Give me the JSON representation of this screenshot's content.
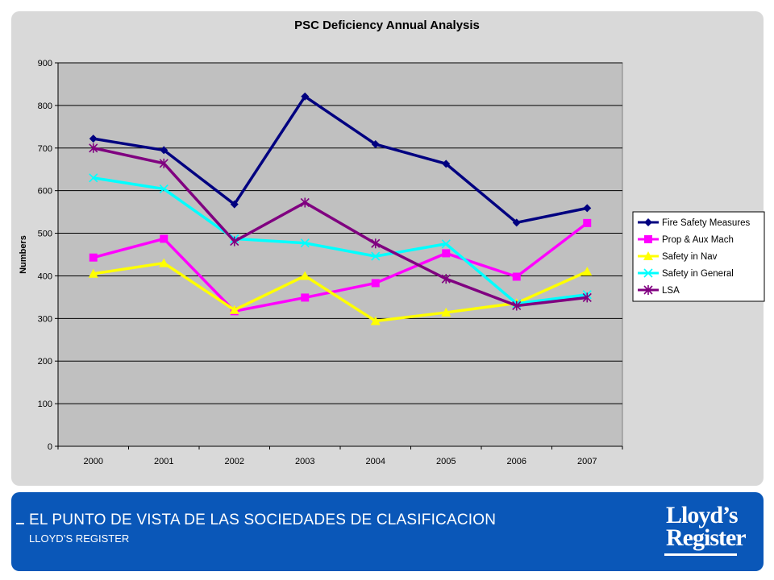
{
  "chart_data": {
    "type": "line",
    "title": "PSC Deficiency Annual Analysis",
    "xlabel": "",
    "ylabel": "Numbers",
    "categories": [
      "2000",
      "2001",
      "2002",
      "2003",
      "2004",
      "2005",
      "2006",
      "2007"
    ],
    "ylim": [
      0,
      900
    ],
    "yticks": [
      0,
      100,
      200,
      300,
      400,
      500,
      600,
      700,
      800,
      900
    ],
    "grid": true,
    "legend_position": "right",
    "plot_background": "#c0c0c0",
    "series": [
      {
        "name": "Fire Safety Measures",
        "color": "#000080",
        "marker": "diamond",
        "values": [
          722,
          695,
          568,
          821,
          709,
          663,
          525,
          559
        ]
      },
      {
        "name": "Prop & Aux Mach",
        "color": "#ff00ff",
        "marker": "square",
        "values": [
          443,
          487,
          317,
          349,
          383,
          453,
          398,
          524
        ]
      },
      {
        "name": "Safety in Nav",
        "color": "#ffff00",
        "marker": "triangle",
        "values": [
          405,
          430,
          320,
          400,
          294,
          314,
          336,
          410
        ]
      },
      {
        "name": "Safety in General",
        "color": "#00ffff",
        "marker": "x",
        "values": [
          630,
          604,
          487,
          477,
          446,
          475,
          335,
          356
        ]
      },
      {
        "name": "LSA",
        "color": "#800080",
        "marker": "star",
        "values": [
          700,
          664,
          481,
          572,
          476,
          393,
          330,
          349
        ]
      }
    ]
  },
  "footer": {
    "title": "EL PUNTO DE VISTA DE LAS SOCIEDADES DE CLASIFICACION",
    "subtitle": "LLOYD’S REGISTER",
    "logo_line1": "Lloyd’s",
    "logo_line2": "Register"
  }
}
